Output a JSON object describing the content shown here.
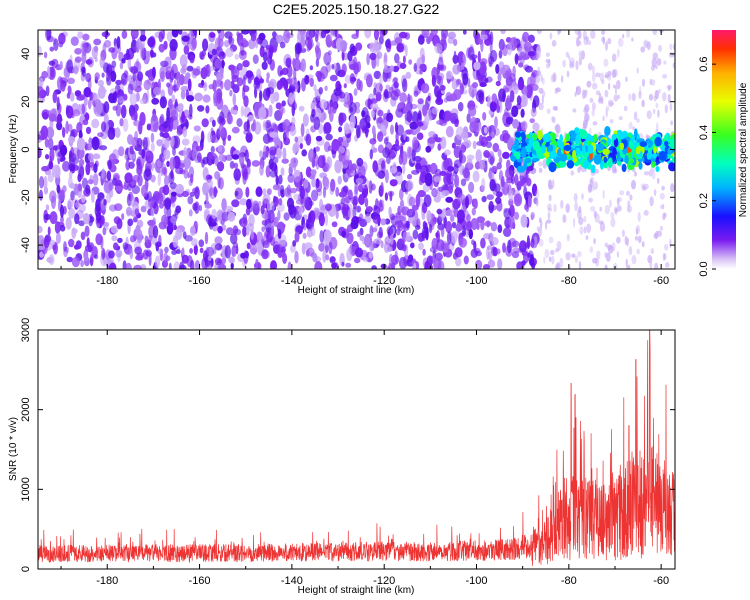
{
  "title": "C2E5.2025.150.18.27.G22",
  "chart_data": [
    {
      "type": "heatmap",
      "xlabel": "Height of straight line (km)",
      "ylabel": "Frequency (Hz)",
      "xlim": [
        -195,
        -57
      ],
      "ylim": [
        -50,
        50
      ],
      "xticks": [
        -180,
        -160,
        -140,
        -120,
        -100,
        -80,
        -60
      ],
      "yticks": [
        -40,
        -20,
        0,
        20,
        40
      ],
      "colorbar": {
        "label": "Normalized spectral amplitude",
        "range": [
          0.0,
          0.7
        ],
        "ticks": [
          0.0,
          0.2,
          0.4,
          0.6
        ],
        "tick_labels": [
          "0.0",
          "0.2",
          "0.4",
          "0.6"
        ],
        "colormap": "rainbow"
      },
      "features": [
        {
          "name": "broadband noise",
          "x_range": [
            -195,
            -87
          ],
          "f_range": [
            -50,
            50
          ],
          "amplitude": 0.08
        },
        {
          "name": "signal band",
          "x_range": [
            -92,
            -57
          ],
          "f_center": 0,
          "f_halfwidth": 6,
          "amplitude_max": 0.7
        }
      ]
    },
    {
      "type": "line",
      "xlabel": "Height of straight line (km)",
      "ylabel": "SNR (10 * v/v)",
      "xlim": [
        -195,
        -57
      ],
      "ylim": [
        0,
        3000
      ],
      "xticks": [
        -180,
        -160,
        -140,
        -120,
        -100,
        -80,
        -60
      ],
      "yticks": [
        0,
        1000,
        2000,
        3000
      ],
      "color": "#ee3333",
      "envelope_x": [
        -195,
        -170,
        -150,
        -130,
        -120,
        -110,
        -100,
        -92,
        -88,
        -85,
        -82,
        -79,
        -76,
        -72,
        -68,
        -65,
        -62,
        -59,
        -57
      ],
      "envelope_y": [
        240,
        250,
        250,
        270,
        280,
        270,
        290,
        310,
        380,
        550,
        800,
        1100,
        950,
        900,
        1050,
        1300,
        1400,
        1200,
        1000
      ],
      "peaks": [
        {
          "x": -79.5,
          "y": 2330
        },
        {
          "x": -65.5,
          "y": 2630
        },
        {
          "x": -62.5,
          "y": 3000
        },
        {
          "x": -78.5,
          "y": 1900
        },
        {
          "x": -67.0,
          "y": 1800
        }
      ]
    }
  ]
}
